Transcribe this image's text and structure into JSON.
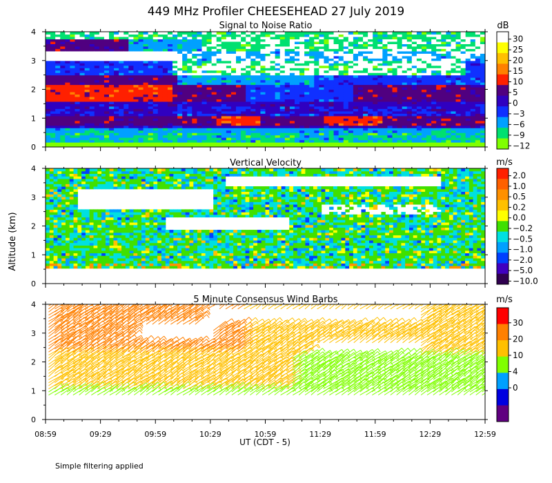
{
  "title": "449 MHz Profiler CHEESEHEAD 27 July 2019",
  "y_axis_label": "Altitude (km)",
  "x_axis_label": "UT  (CDT - 5)",
  "footnote": "Simple filtering applied",
  "x_ticks": [
    "08:59",
    "09:29",
    "09:59",
    "10:29",
    "10:59",
    "11:29",
    "11:59",
    "12:29",
    "12:59"
  ],
  "y_ticks": [
    "0",
    "1",
    "2",
    "3",
    "4"
  ],
  "chart_data": [
    {
      "type": "heatmap",
      "title": "Signal to Noise Ratio",
      "xlabel": "UT (CDT - 5)",
      "ylabel": "Altitude (km)",
      "xlim": [
        "08:59",
        "12:59"
      ],
      "ylim": [
        0,
        4
      ],
      "colorbar": {
        "unit": "dB",
        "labels": [
          "30",
          "25",
          "20",
          "15",
          "10",
          "5",
          "0",
          "−3",
          "−6",
          "−9",
          "−12"
        ],
        "colors": [
          "#ffffff",
          "#ffff00",
          "#ffc000",
          "#ff8000",
          "#ff2000",
          "#500080",
          "#3000c0",
          "#1030ff",
          "#00a0ff",
          "#00e070",
          "#80ff00"
        ]
      }
    },
    {
      "type": "heatmap",
      "title": "Vertical Velocity",
      "xlabel": "UT (CDT - 5)",
      "ylabel": "Altitude (km)",
      "xlim": [
        "08:59",
        "12:59"
      ],
      "ylim": [
        0,
        4
      ],
      "colorbar": {
        "unit": "m/s",
        "labels": [
          "2.0",
          "1.0",
          "0.5",
          "0.2",
          "0.0",
          "−0.2",
          "−0.5",
          "−1.0",
          "−2.0",
          "−5.0",
          "−10.0"
        ],
        "colors": [
          "#ff2000",
          "#ff6000",
          "#ff9000",
          "#ffc000",
          "#ffff00",
          "#40e000",
          "#00e0e0",
          "#00a0ff",
          "#0040ff",
          "#4000c0",
          "#300050"
        ]
      }
    },
    {
      "type": "scatter",
      "title": "5 Minute Consensus Wind Barbs",
      "xlabel": "UT (CDT - 5)",
      "ylabel": "Altitude (km)",
      "xlim": [
        "08:59",
        "12:59"
      ],
      "ylim": [
        0,
        4
      ],
      "colorbar": {
        "unit": "m/s",
        "labels": [
          "30",
          "20",
          "10",
          "4",
          "0"
        ],
        "colors": [
          "#ff0000",
          "#ff8000",
          "#ffc000",
          "#80ff00",
          "#00a0ff",
          "#0000e0",
          "#600080"
        ]
      }
    }
  ]
}
